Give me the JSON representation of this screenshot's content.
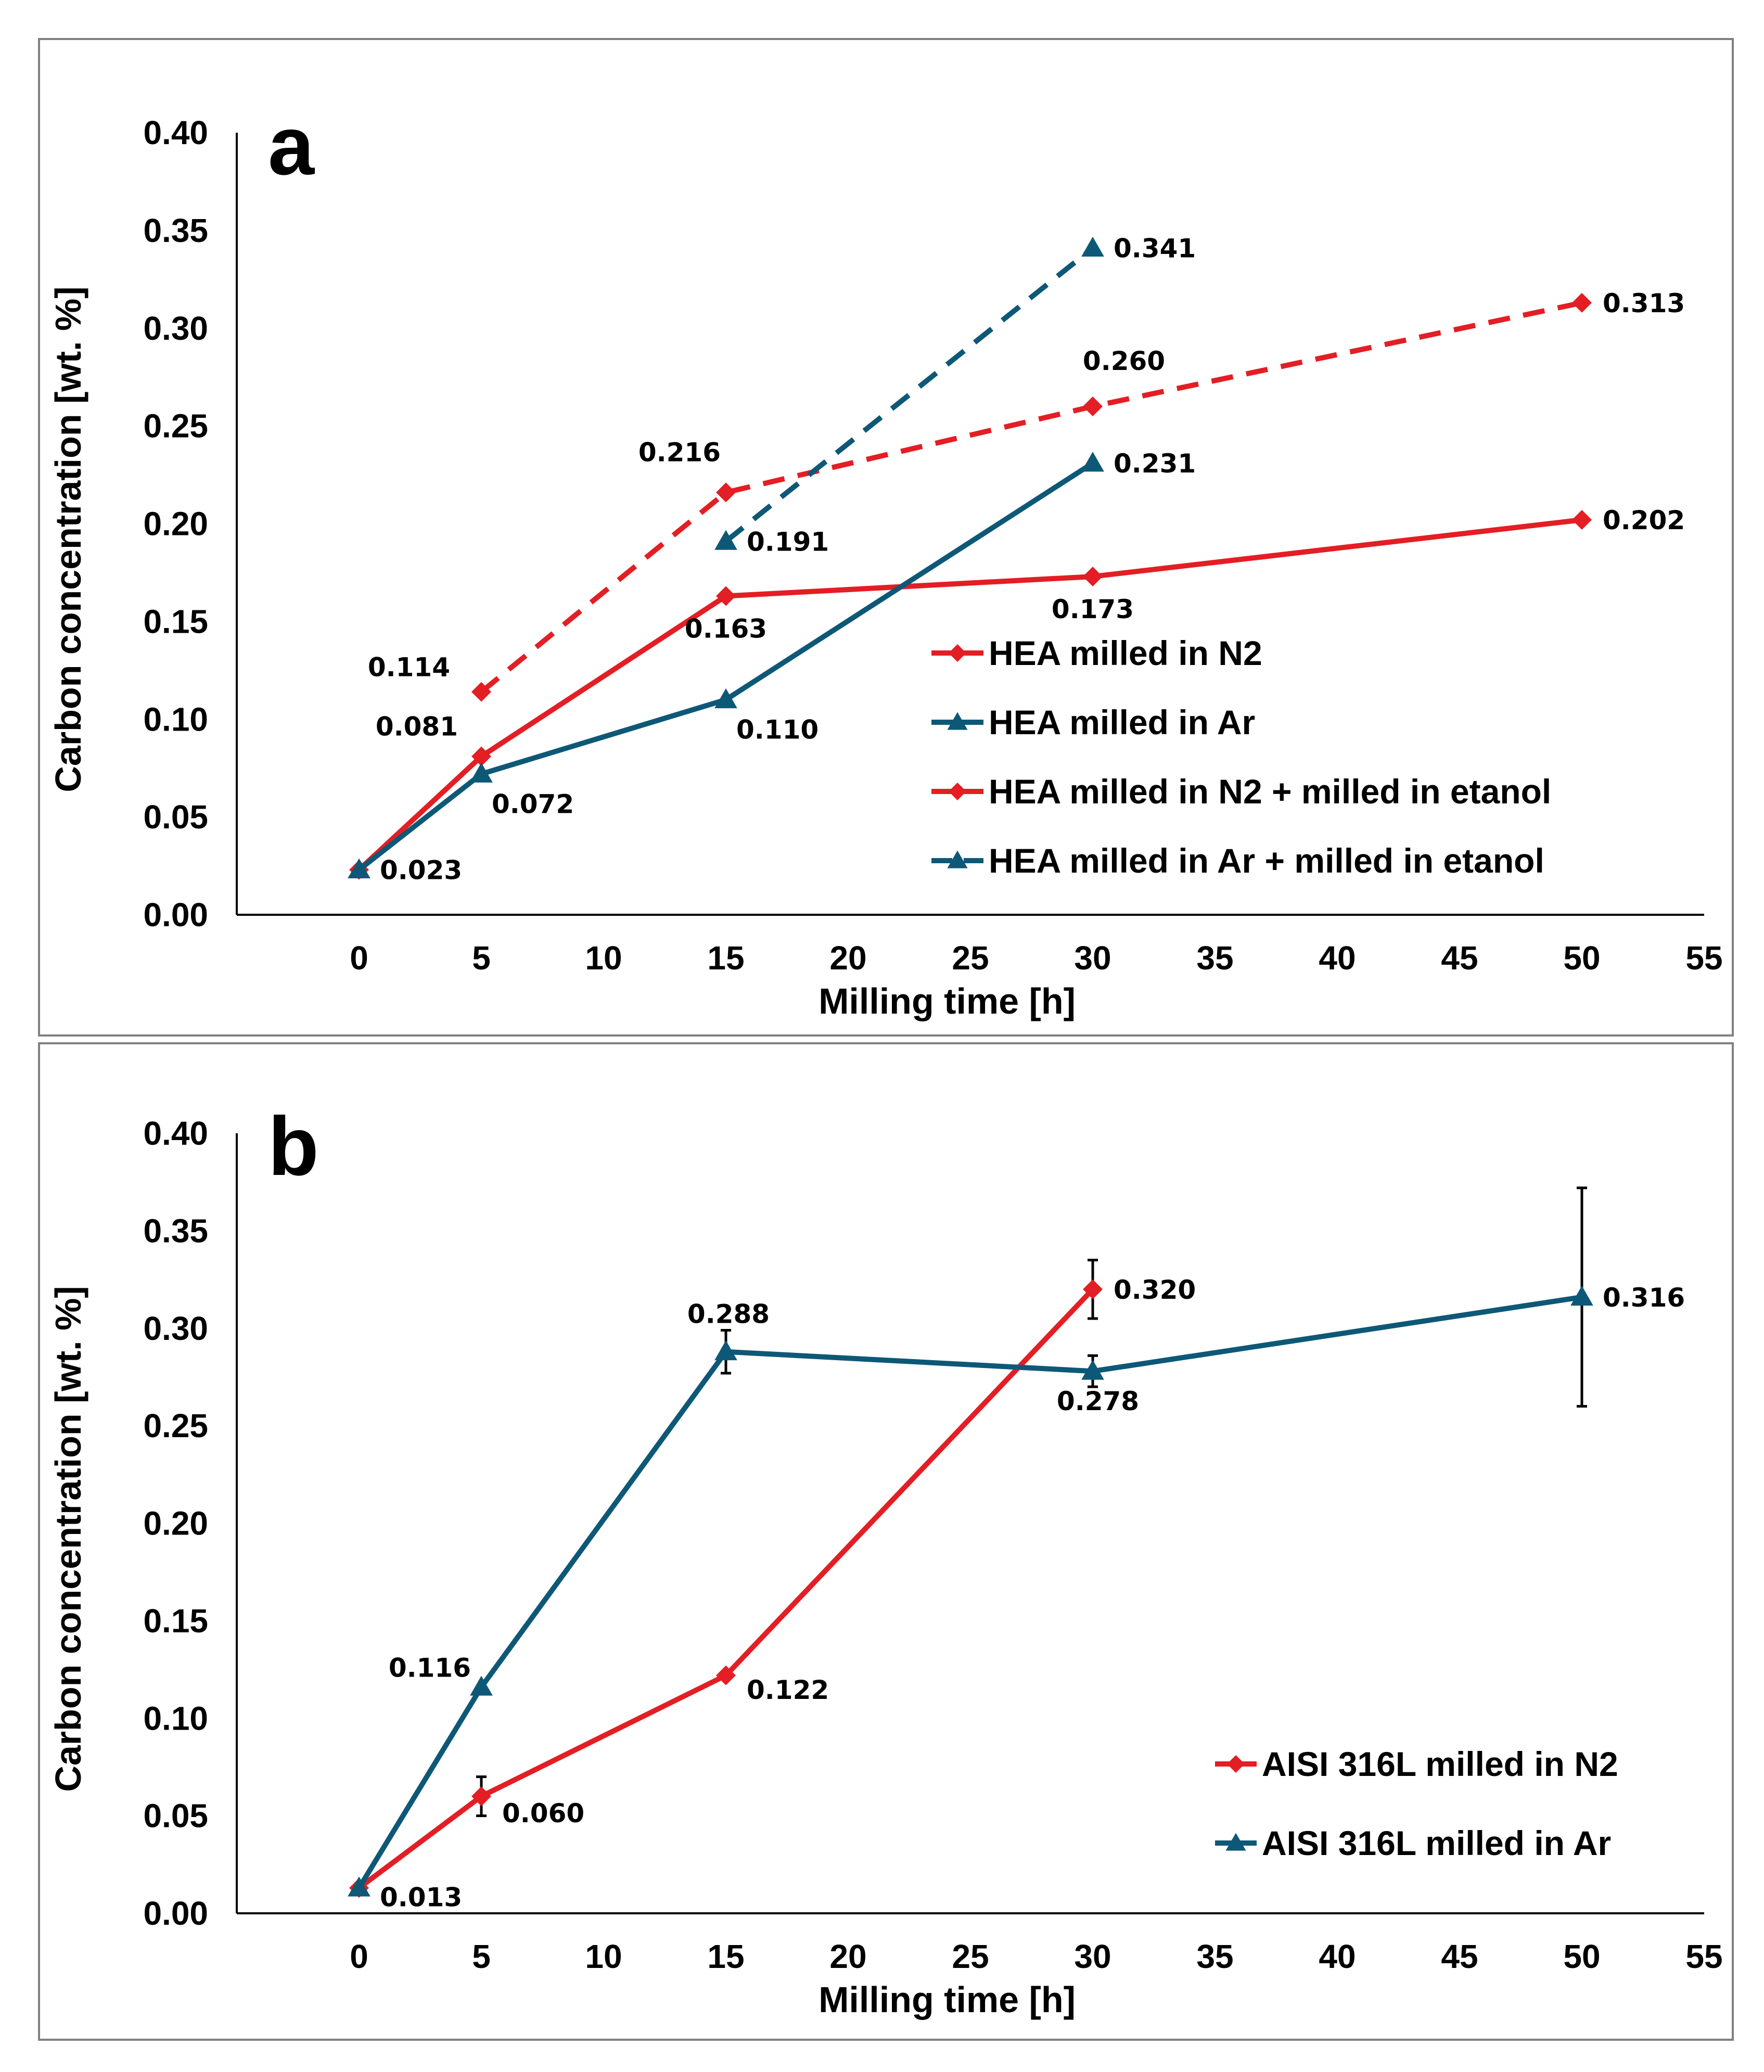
{
  "chart_data": [
    {
      "type": "line",
      "panel_label": "a",
      "xlabel": "Milling time [h]",
      "ylabel": "Carbon concentration [wt. %]",
      "xlim": [
        -5,
        55
      ],
      "ylim": [
        0,
        0.4
      ],
      "x_ticks": [
        "0",
        "5",
        "10",
        "15",
        "20",
        "25",
        "30",
        "35",
        "40",
        "45",
        "50",
        "55"
      ],
      "y_ticks": [
        "0.00",
        "0.05",
        "0.10",
        "0.15",
        "0.20",
        "0.25",
        "0.30",
        "0.35",
        "0.40"
      ],
      "grid": false,
      "legend_position": "bottom-right",
      "series": [
        {
          "name": "HEA milled in N2",
          "color": "#e31e24",
          "marker": "diamond",
          "dashed": false,
          "x": [
            0,
            5,
            15,
            30,
            50
          ],
          "values": [
            0.023,
            0.081,
            0.163,
            0.173,
            0.202
          ],
          "labels": [
            "",
            "0.081",
            "0.163",
            "0.173",
            "0.202"
          ]
        },
        {
          "name": "HEA milled in Ar",
          "color": "#0e5877",
          "marker": "triangle",
          "dashed": false,
          "x": [
            0,
            5,
            15,
            30
          ],
          "values": [
            0.023,
            0.072,
            0.11,
            0.231
          ],
          "labels": [
            "0.023",
            "0.072",
            "0.110",
            "0.231"
          ]
        },
        {
          "name": "HEA milled in N2 + milled in etanol",
          "color": "#e31e24",
          "marker": "diamond",
          "dashed": true,
          "x": [
            5,
            15,
            30,
            50
          ],
          "values": [
            0.114,
            0.216,
            0.26,
            0.313
          ],
          "labels": [
            "0.114",
            "0.216",
            "0.260",
            "0.313"
          ]
        },
        {
          "name": "HEA milled in Ar + milled in etanol",
          "color": "#0e5877",
          "marker": "triangle",
          "dashed": true,
          "x": [
            15,
            30
          ],
          "values": [
            0.191,
            0.341
          ],
          "labels": [
            "0.191",
            "0.341"
          ]
        }
      ]
    },
    {
      "type": "line",
      "panel_label": "b",
      "xlabel": "Milling time [h]",
      "ylabel": "Carbon concentration [wt. %]",
      "xlim": [
        -5,
        55
      ],
      "ylim": [
        0,
        0.4
      ],
      "x_ticks": [
        "0",
        "5",
        "10",
        "15",
        "20",
        "25",
        "30",
        "35",
        "40",
        "45",
        "50",
        "55"
      ],
      "y_ticks": [
        "0.00",
        "0.05",
        "0.10",
        "0.15",
        "0.20",
        "0.25",
        "0.30",
        "0.35",
        "0.40"
      ],
      "grid": false,
      "legend_position": "bottom-right",
      "series": [
        {
          "name": "AISI 316L milled in  N2",
          "color": "#e31e24",
          "marker": "diamond",
          "dashed": false,
          "x": [
            0,
            5,
            15,
            30
          ],
          "values": [
            0.013,
            0.06,
            0.122,
            0.32
          ],
          "labels": [
            "",
            "0.060",
            "0.122",
            "0.320"
          ],
          "error": [
            0,
            0.01,
            0,
            0.015
          ]
        },
        {
          "name": "AISI 316L milled in Ar",
          "color": "#0e5877",
          "marker": "triangle",
          "dashed": false,
          "x": [
            0,
            5,
            15,
            30,
            50
          ],
          "values": [
            0.013,
            0.116,
            0.288,
            0.278,
            0.316
          ],
          "labels": [
            "0.013",
            "0.116",
            "0.288",
            "0.278",
            "0.316"
          ],
          "error": [
            0,
            0,
            0.011,
            0.008,
            0.056
          ]
        }
      ]
    }
  ]
}
